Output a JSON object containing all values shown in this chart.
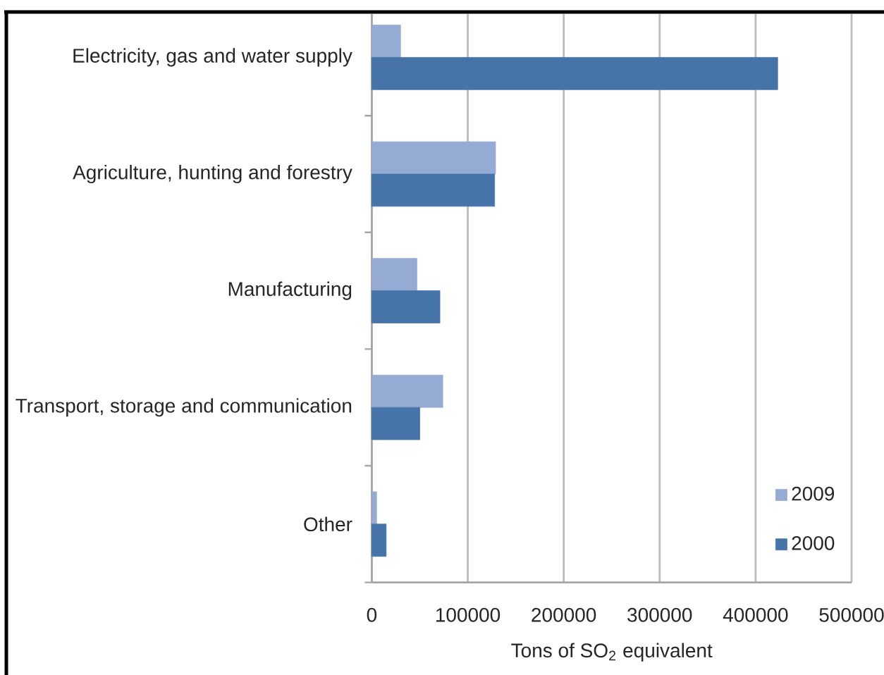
{
  "chart_data": {
    "type": "bar",
    "orientation": "horizontal",
    "categories": [
      "Electricity, gas and water supply",
      "Agriculture, hunting and forestry",
      "Manufacturing",
      "Transport, storage and communication",
      "Other"
    ],
    "series": [
      {
        "name": "2009",
        "color": "#95abd3",
        "values": [
          30000,
          129000,
          47000,
          74000,
          5000
        ]
      },
      {
        "name": "2000",
        "color": "#4674a8",
        "values": [
          423000,
          128000,
          71000,
          50000,
          15000
        ]
      }
    ],
    "xlabel": "Tons of SO$_{2}$ equivalent",
    "xlim": [
      0,
      500000
    ],
    "xticks": [
      0,
      100000,
      200000,
      300000,
      400000,
      500000
    ],
    "grid": "x",
    "legend": "bottom right"
  }
}
